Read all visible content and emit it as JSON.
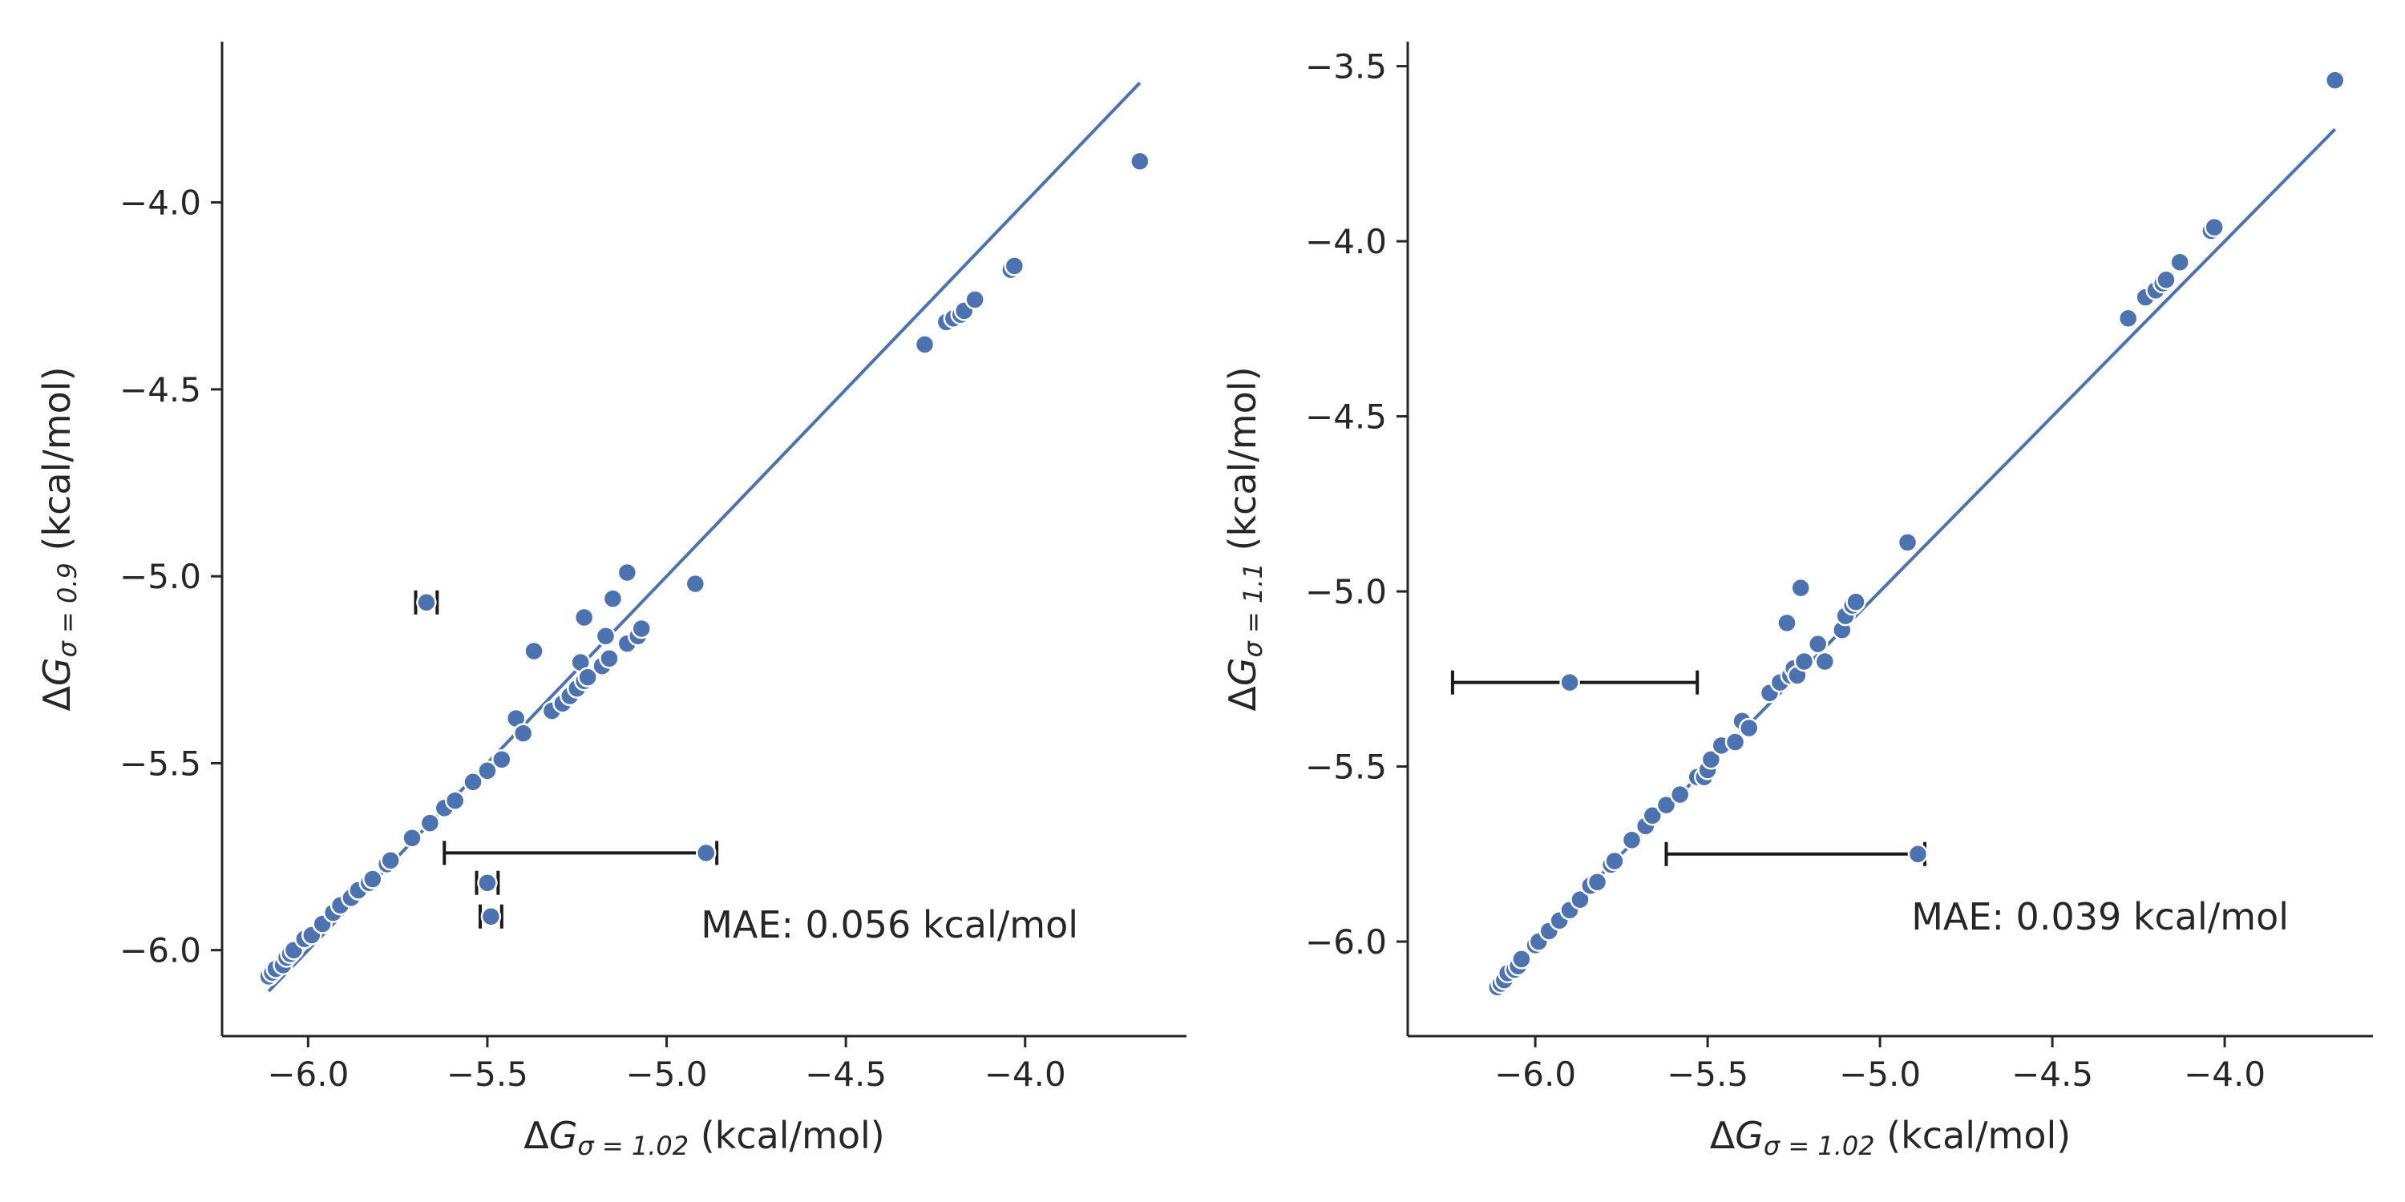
{
  "chart_data": [
    {
      "type": "scatter",
      "xlabel": "ΔGσ = 1.02 (kcal/mol)",
      "xlabel_parts": {
        "delta": "Δ",
        "var": "G",
        "sub": "σ = 1.02",
        "unit": " (kcal/mol)"
      },
      "ylabel": "ΔGσ = 0.9 (kcal/mol)",
      "ylabel_parts": {
        "delta": "Δ",
        "var": "G",
        "sub": "σ = 0.9",
        "unit": " (kcal/mol)"
      },
      "xlim": [
        -6.24,
        -3.55
      ],
      "ylim": [
        -6.23,
        -3.57
      ],
      "xticks": [
        -6.0,
        -5.5,
        -5.0,
        -4.5,
        -4.0
      ],
      "xtick_labels": [
        "−6.0",
        "−5.5",
        "−5.0",
        "−4.5",
        "−4.0"
      ],
      "yticks": [
        -6.0,
        -5.5,
        -5.0,
        -4.5,
        -4.0
      ],
      "ytick_labels": [
        "−6.0",
        "−5.5",
        "−5.0",
        "−4.5",
        "−4.0"
      ],
      "annotation": "MAE: 0.056 kcal/mol",
      "point_color": "#4c72b0",
      "fit_line": {
        "x": [
          -6.11,
          -3.68
        ],
        "y": [
          -6.11,
          -3.68
        ],
        "color": "#4c72b0"
      },
      "errorbar_color": "#1a1a1a",
      "points": [
        {
          "x": -6.11,
          "y": -6.07
        },
        {
          "x": -6.1,
          "y": -6.06
        },
        {
          "x": -6.09,
          "y": -6.05
        },
        {
          "x": -6.07,
          "y": -6.04
        },
        {
          "x": -6.06,
          "y": -6.02
        },
        {
          "x": -6.05,
          "y": -6.01
        },
        {
          "x": -6.04,
          "y": -6.0
        },
        {
          "x": -6.01,
          "y": -5.97
        },
        {
          "x": -5.99,
          "y": -5.96
        },
        {
          "x": -5.96,
          "y": -5.93
        },
        {
          "x": -5.93,
          "y": -5.9
        },
        {
          "x": -5.91,
          "y": -5.88
        },
        {
          "x": -5.88,
          "y": -5.86
        },
        {
          "x": -5.86,
          "y": -5.84
        },
        {
          "x": -5.83,
          "y": -5.82
        },
        {
          "x": -5.82,
          "y": -5.81
        },
        {
          "x": -5.78,
          "y": -5.77
        },
        {
          "x": -5.77,
          "y": -5.76
        },
        {
          "x": -5.71,
          "y": -5.7
        },
        {
          "x": -5.66,
          "y": -5.66
        },
        {
          "x": -5.62,
          "y": -5.62
        },
        {
          "x": -5.59,
          "y": -5.6
        },
        {
          "x": -5.54,
          "y": -5.55
        },
        {
          "x": -5.5,
          "y": -5.52
        },
        {
          "x": -5.46,
          "y": -5.49
        },
        {
          "x": -5.42,
          "y": -5.38
        },
        {
          "x": -5.4,
          "y": -5.42
        },
        {
          "x": -5.37,
          "y": -5.2
        },
        {
          "x": -5.32,
          "y": -5.36
        },
        {
          "x": -5.29,
          "y": -5.34
        },
        {
          "x": -5.27,
          "y": -5.32
        },
        {
          "x": -5.25,
          "y": -5.3
        },
        {
          "x": -5.24,
          "y": -5.23
        },
        {
          "x": -5.23,
          "y": -5.28
        },
        {
          "x": -5.22,
          "y": -5.27
        },
        {
          "x": -5.23,
          "y": -5.11
        },
        {
          "x": -5.18,
          "y": -5.24
        },
        {
          "x": -5.16,
          "y": -5.22
        },
        {
          "x": -5.17,
          "y": -5.16
        },
        {
          "x": -5.15,
          "y": -5.06
        },
        {
          "x": -5.11,
          "y": -5.18
        },
        {
          "x": -5.11,
          "y": -4.99
        },
        {
          "x": -5.08,
          "y": -5.16
        },
        {
          "x": -5.07,
          "y": -5.14
        },
        {
          "x": -4.92,
          "y": -5.02
        },
        {
          "x": -4.28,
          "y": -4.38
        },
        {
          "x": -4.22,
          "y": -4.32
        },
        {
          "x": -4.2,
          "y": -4.31
        },
        {
          "x": -4.18,
          "y": -4.3
        },
        {
          "x": -4.17,
          "y": -4.29
        },
        {
          "x": -4.14,
          "y": -4.26
        },
        {
          "x": -4.04,
          "y": -4.18
        },
        {
          "x": -4.03,
          "y": -4.17
        },
        {
          "x": -3.68,
          "y": -3.89
        },
        {
          "x": -5.67,
          "y": -5.07,
          "xerr": 0.03
        },
        {
          "x": -4.89,
          "y": -5.74,
          "xlow": -5.62,
          "xhigh": -4.86
        },
        {
          "x": -5.5,
          "y": -5.82,
          "xerr": 0.03
        },
        {
          "x": -5.49,
          "y": -5.91,
          "xerr": 0.03
        }
      ]
    },
    {
      "type": "scatter",
      "xlabel": "ΔGσ = 1.02 (kcal/mol)",
      "xlabel_parts": {
        "delta": "Δ",
        "var": "G",
        "sub": "σ = 1.02",
        "unit": " (kcal/mol)"
      },
      "ylabel": "ΔGσ = 1.1 (kcal/mol)",
      "ylabel_parts": {
        "delta": "Δ",
        "var": "G",
        "sub": "σ = 1.1",
        "unit": " (kcal/mol)"
      },
      "xlim": [
        -6.37,
        -3.57
      ],
      "ylim": [
        -6.27,
        -3.43
      ],
      "xticks": [
        -6.0,
        -5.5,
        -5.0,
        -4.5,
        -4.0
      ],
      "xtick_labels": [
        "−6.0",
        "−5.5",
        "−5.0",
        "−4.5",
        "−4.0"
      ],
      "yticks": [
        -6.0,
        -5.5,
        -5.0,
        -4.5,
        -4.0,
        -3.5
      ],
      "ytick_labels": [
        "−6.0",
        "−5.5",
        "−5.0",
        "−4.5",
        "−4.0",
        "−3.5"
      ],
      "annotation": "MAE: 0.039 kcal/mol",
      "point_color": "#4c72b0",
      "fit_line": {
        "x": [
          -6.11,
          -3.68
        ],
        "y": [
          -6.11,
          -3.68
        ],
        "color": "#4c72b0"
      },
      "errorbar_color": "#1a1a1a",
      "points": [
        {
          "x": -6.11,
          "y": -6.13
        },
        {
          "x": -6.1,
          "y": -6.12
        },
        {
          "x": -6.09,
          "y": -6.11
        },
        {
          "x": -6.08,
          "y": -6.09
        },
        {
          "x": -6.06,
          "y": -6.08
        },
        {
          "x": -6.05,
          "y": -6.07
        },
        {
          "x": -6.04,
          "y": -6.05
        },
        {
          "x": -6.0,
          "y": -6.01
        },
        {
          "x": -5.99,
          "y": -6.0
        },
        {
          "x": -5.96,
          "y": -5.97
        },
        {
          "x": -5.93,
          "y": -5.94
        },
        {
          "x": -5.9,
          "y": -5.91
        },
        {
          "x": -5.87,
          "y": -5.88
        },
        {
          "x": -5.84,
          "y": -5.84
        },
        {
          "x": -5.82,
          "y": -5.83
        },
        {
          "x": -5.78,
          "y": -5.78
        },
        {
          "x": -5.77,
          "y": -5.77
        },
        {
          "x": -5.72,
          "y": -5.71
        },
        {
          "x": -5.68,
          "y": -5.67
        },
        {
          "x": -5.66,
          "y": -5.64
        },
        {
          "x": -5.62,
          "y": -5.61
        },
        {
          "x": -5.58,
          "y": -5.58
        },
        {
          "x": -5.53,
          "y": -5.53
        },
        {
          "x": -5.51,
          "y": -5.53
        },
        {
          "x": -5.5,
          "y": -5.51
        },
        {
          "x": -5.49,
          "y": -5.48
        },
        {
          "x": -5.46,
          "y": -5.44
        },
        {
          "x": -5.42,
          "y": -5.43
        },
        {
          "x": -5.4,
          "y": -5.37
        },
        {
          "x": -5.38,
          "y": -5.39
        },
        {
          "x": -5.32,
          "y": -5.29
        },
        {
          "x": -5.29,
          "y": -5.26
        },
        {
          "x": -5.27,
          "y": -5.09
        },
        {
          "x": -5.26,
          "y": -5.24
        },
        {
          "x": -5.25,
          "y": -5.22
        },
        {
          "x": -5.24,
          "y": -5.24
        },
        {
          "x": -5.23,
          "y": -4.99
        },
        {
          "x": -5.22,
          "y": -5.2
        },
        {
          "x": -5.18,
          "y": -5.15
        },
        {
          "x": -5.16,
          "y": -5.2
        },
        {
          "x": -5.11,
          "y": -5.11
        },
        {
          "x": -5.1,
          "y": -5.07
        },
        {
          "x": -5.08,
          "y": -5.04
        },
        {
          "x": -5.07,
          "y": -5.03
        },
        {
          "x": -4.92,
          "y": -4.86
        },
        {
          "x": -4.28,
          "y": -4.22
        },
        {
          "x": -4.23,
          "y": -4.16
        },
        {
          "x": -4.2,
          "y": -4.14
        },
        {
          "x": -4.18,
          "y": -4.12
        },
        {
          "x": -4.17,
          "y": -4.11
        },
        {
          "x": -4.13,
          "y": -4.06
        },
        {
          "x": -4.04,
          "y": -3.97
        },
        {
          "x": -4.03,
          "y": -3.96
        },
        {
          "x": -3.68,
          "y": -3.54
        },
        {
          "x": -5.9,
          "y": -5.26,
          "xlow": -6.24,
          "xhigh": -5.53
        },
        {
          "x": -4.89,
          "y": -5.75,
          "xlow": -5.62,
          "xhigh": -4.87
        }
      ]
    }
  ]
}
